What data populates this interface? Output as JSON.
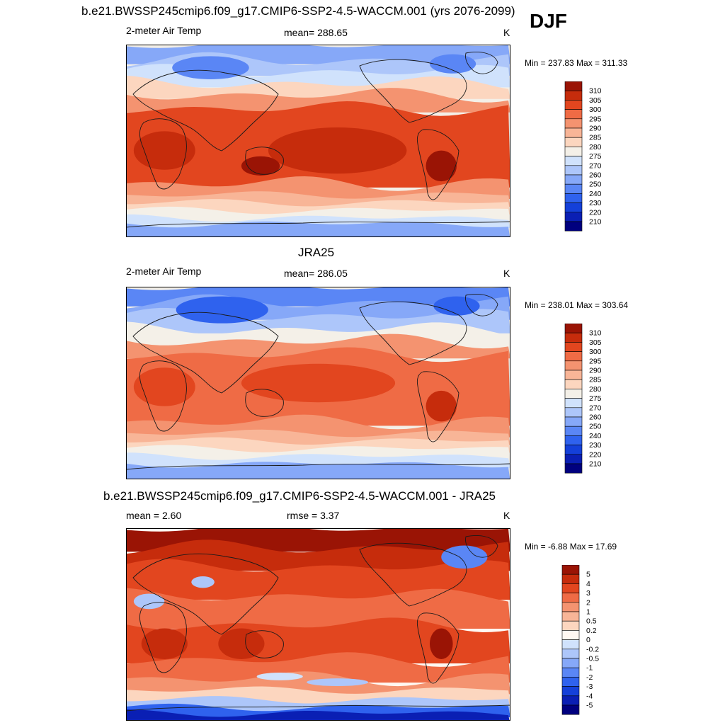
{
  "header": {
    "case_title": "b.e21.BWSSP245cmip6.f09_g17.CMIP6-SSP2-4.5-WACCM.001 (yrs 2076-2099)",
    "season": "DJF"
  },
  "colors": {
    "temp_levels": [
      "#00007f",
      "#0a1fb4",
      "#1440d9",
      "#2f62ee",
      "#5a86f5",
      "#86a8f8",
      "#adc6fa",
      "#d0e2fc",
      "#f4f0e8",
      "#fcd6bf",
      "#f8b597",
      "#f49370",
      "#ef6b45",
      "#e2461f",
      "#c62c0c",
      "#9a1405"
    ],
    "diff_levels": [
      "#00007f",
      "#0a1fb4",
      "#1440d9",
      "#2f62ee",
      "#5a86f5",
      "#86a8f8",
      "#adc6fa",
      "#d0e2fc",
      "#fff8f2",
      "#fcd6bf",
      "#f8b597",
      "#f49370",
      "#ef6b45",
      "#e2461f",
      "#c62c0c",
      "#9a1405"
    ],
    "coast": "#1a1a1a"
  },
  "chart_data": [
    {
      "type": "heatmap",
      "title": "",
      "left_label": "2-meter Air Temp",
      "center_label": "mean= 288.65",
      "units": "K",
      "minmax": "Min = 237.83 Max = 311.33",
      "colorbar_ticks": [
        "310",
        "305",
        "300",
        "295",
        "290",
        "285",
        "280",
        "275",
        "270",
        "260",
        "250",
        "240",
        "230",
        "220",
        "210"
      ],
      "mean": 288.65,
      "min": 237.83,
      "max": 311.33
    },
    {
      "type": "heatmap",
      "title": "JRA25",
      "left_label": "2-meter Air Temp",
      "center_label": "mean= 286.05",
      "units": "K",
      "minmax": "Min = 238.01 Max = 303.64",
      "colorbar_ticks": [
        "310",
        "305",
        "300",
        "295",
        "290",
        "285",
        "280",
        "275",
        "270",
        "260",
        "250",
        "240",
        "230",
        "220",
        "210"
      ],
      "mean": 286.05,
      "min": 238.01,
      "max": 303.64
    },
    {
      "type": "heatmap",
      "title": "b.e21.BWSSP245cmip6.f09_g17.CMIP6-SSP2-4.5-WACCM.001 - JRA25",
      "left_label": "mean =   2.60",
      "center_label": "rmse =   3.37",
      "units": "K",
      "minmax": "Min =  -6.88 Max =  17.69",
      "colorbar_ticks": [
        "5",
        "4",
        "3",
        "2",
        "1",
        "0.5",
        "0.2",
        "0",
        "-0.2",
        "-0.5",
        "-1",
        "-2",
        "-3",
        "-4",
        "-5"
      ],
      "mean": 2.6,
      "rmse": 3.37,
      "min": -6.88,
      "max": 17.69
    }
  ]
}
